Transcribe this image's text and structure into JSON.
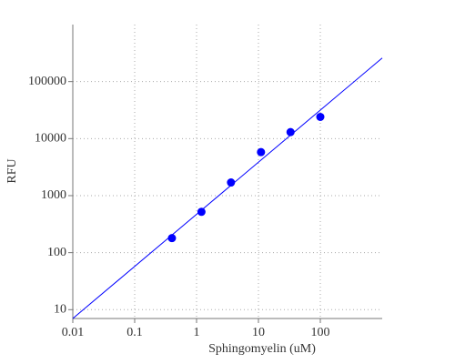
{
  "chart_data": {
    "type": "scatter",
    "x_label": "Sphingomyelin (uM)",
    "y_label": "RFU",
    "xscale": "log",
    "yscale": "log",
    "grid": true,
    "xlim": [
      0.01,
      1000
    ],
    "ylim": [
      7,
      1000000
    ],
    "xticks": [
      0.01,
      0.1,
      1,
      10,
      100
    ],
    "yticks": [
      10,
      100,
      1000,
      10000,
      100000
    ],
    "series": [
      {
        "mode": "markers",
        "color": "#0000ff",
        "x": [
          0.4,
          1.2,
          3.6,
          11,
          33,
          100
        ],
        "values": [
          180,
          520,
          1700,
          5800,
          13000,
          24000
        ]
      },
      {
        "mode": "line",
        "color": "#0000ff",
        "x": [
          0.01,
          1000
        ],
        "values": [
          7,
          259000
        ]
      }
    ]
  }
}
